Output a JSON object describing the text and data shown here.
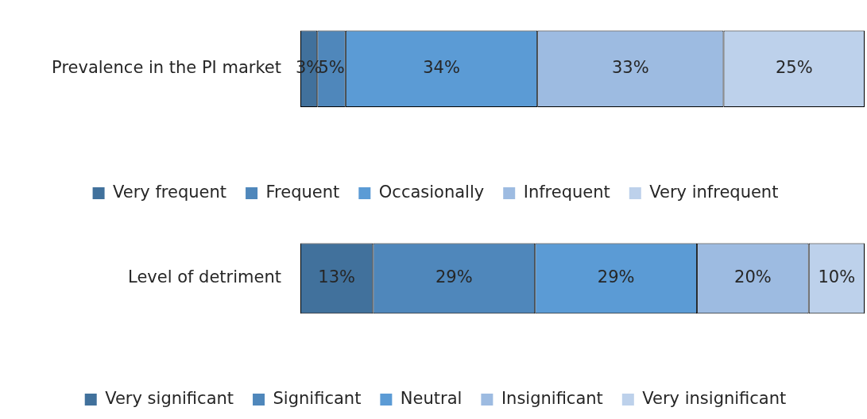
{
  "chart_data": [
    {
      "type": "bar",
      "orientation": "horizontal",
      "stacked": true,
      "categories": [
        "Prevalence in the PI market"
      ],
      "legend": "bottom",
      "grid": false,
      "series": [
        {
          "name": "Very frequent",
          "color": "#41719c",
          "values": [
            3
          ],
          "value_labels": [
            "3%"
          ]
        },
        {
          "name": "Frequent",
          "color": "#4f87bb",
          "values": [
            5
          ],
          "value_labels": [
            "5%"
          ]
        },
        {
          "name": "Occasionally",
          "color": "#5b9bd5",
          "values": [
            34
          ],
          "value_labels": [
            "34%"
          ]
        },
        {
          "name": "Infrequent",
          "color": "#9dbbe1",
          "values": [
            33
          ],
          "value_labels": [
            "33%"
          ]
        },
        {
          "name": "Very infrequent",
          "color": "#bdd1eb",
          "values": [
            25
          ],
          "value_labels": [
            "25%"
          ]
        }
      ]
    },
    {
      "type": "bar",
      "orientation": "horizontal",
      "stacked": true,
      "categories": [
        "Level of detriment"
      ],
      "legend": "bottom",
      "grid": false,
      "series": [
        {
          "name": "Very significant",
          "color": "#41719c",
          "values": [
            13
          ],
          "value_labels": [
            "13%"
          ]
        },
        {
          "name": "Significant",
          "color": "#4f87bb",
          "values": [
            29
          ],
          "value_labels": [
            "29%"
          ]
        },
        {
          "name": "Neutral",
          "color": "#5b9bd5",
          "values": [
            29
          ],
          "value_labels": [
            "29%"
          ]
        },
        {
          "name": "Insignificant",
          "color": "#9dbbe1",
          "values": [
            20
          ],
          "value_labels": [
            "20%"
          ]
        },
        {
          "name": "Very insignificant",
          "color": "#bdd1eb",
          "values": [
            10
          ],
          "value_labels": [
            "10%"
          ]
        }
      ]
    }
  ]
}
